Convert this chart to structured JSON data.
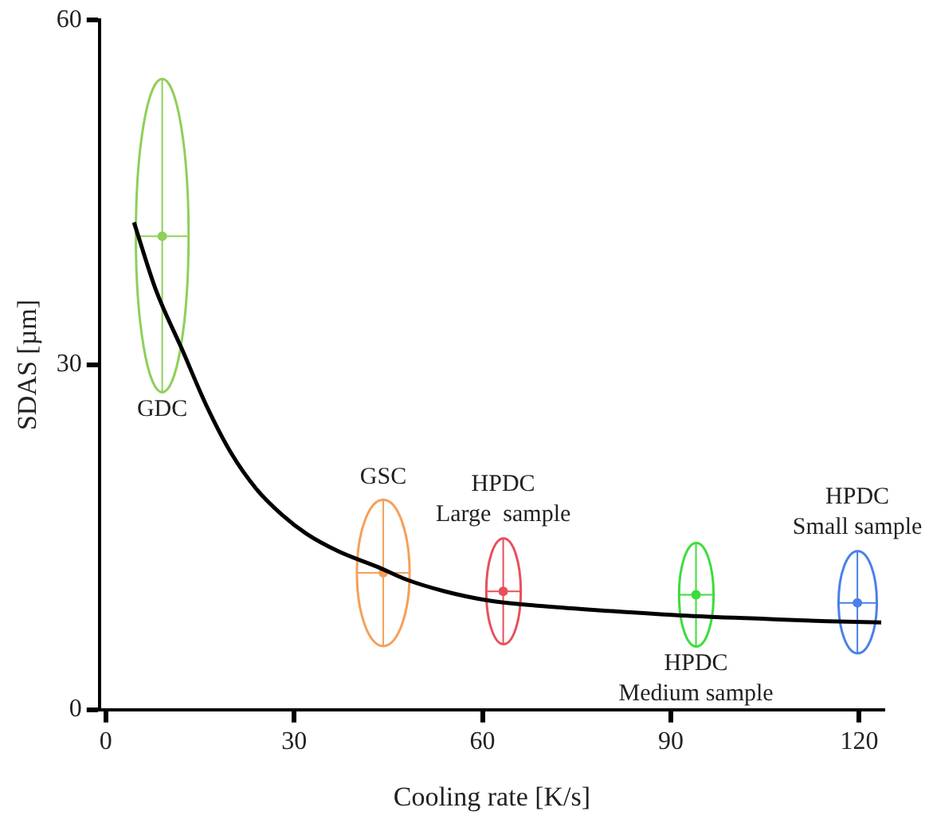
{
  "chart_data": {
    "type": "line",
    "xlabel": "Cooling rate [K/s]",
    "ylabel": "SDAS [µm]",
    "xlim": [
      -1,
      124
    ],
    "xticks": [
      0,
      30,
      60,
      90,
      120
    ],
    "ylim": [
      0,
      60
    ],
    "yticks": [
      0,
      30,
      60
    ],
    "grid": false,
    "legend": false,
    "series": [
      {
        "color": "#000000",
        "marker": "none",
        "x": [
          4.5,
          8,
          12.2,
          16,
          20,
          24,
          28,
          32,
          37,
          43.4,
          48,
          54,
          61,
          70,
          80,
          91.6,
          105,
          115,
          123.5
        ],
        "values": [
          42.4,
          36.5,
          31.3,
          26.5,
          22.3,
          19.2,
          17,
          15.3,
          13.8,
          12.4,
          11.3,
          10.3,
          9.5,
          9,
          8.6,
          8.2,
          7.9,
          7.7,
          7.6
        ]
      },
      {
        "type": "scatter",
        "marker": "circle",
        "x": [
          9,
          44.2,
          63.3,
          94,
          119.7
        ],
        "values": [
          41.2,
          11.9,
          10.3,
          10,
          9.3
        ],
        "colors": [
          "#8fcf5a",
          "#f5a05a",
          "#e8505a",
          "#3ddc3d",
          "#4a80e8"
        ],
        "errors": [
          [
            27.6,
            54.9
          ],
          [
            5.5,
            18.3
          ],
          [
            5.7,
            14.9
          ],
          [
            5.5,
            14.5
          ],
          [
            4.9,
            13.8
          ]
        ],
        "xerrors": [
          [
            4.8,
            13.2
          ],
          [
            40,
            48.4
          ],
          [
            60.6,
            66.1
          ],
          [
            91.3,
            96.8
          ],
          [
            116.7,
            122.8
          ]
        ]
      }
    ],
    "annotations": [
      "GDC",
      "GSC",
      "HPDC\nLarge  sample",
      "HPDC\nMedium sample",
      "HPDC\nSmall sample"
    ]
  }
}
